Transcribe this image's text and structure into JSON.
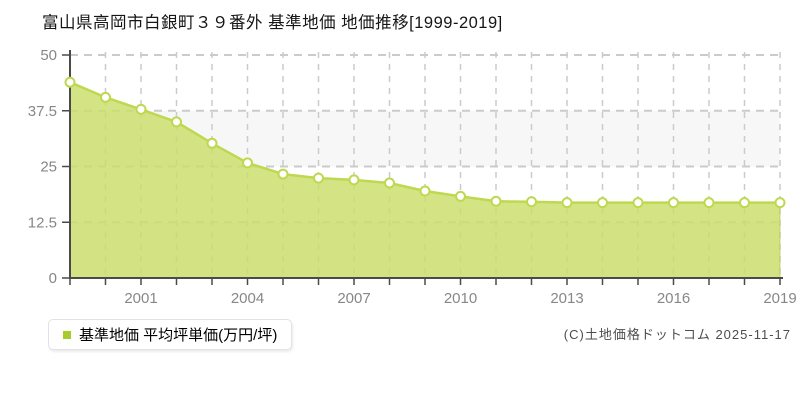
{
  "page": {
    "title": "富山県高岡市白銀町３９番外 基準地価 地価推移[1999-2019]",
    "copyright": "(C)土地価格ドットコム 2025-11-17"
  },
  "legend": {
    "label": "基準地価 平均坪単価(万円/坪)"
  },
  "colors": {
    "line": "#bed850",
    "area_fill": "rgba(202,222,106,0.82)",
    "area_edge": "rgba(167,200,60,0.65)",
    "marker_fill": "#ffffff",
    "legend_swatch": "#a8cc29",
    "band": "#f7f7f7",
    "grid": "#cbcbcb",
    "axis": "#4a4a4a",
    "tick_text": "#878787"
  },
  "chart_data": {
    "type": "area",
    "title": "富山県高岡市白銀町３９番外 基準地価 地価推移[1999-2019]",
    "x": [
      1999,
      2000,
      2001,
      2002,
      2003,
      2004,
      2005,
      2006,
      2007,
      2008,
      2009,
      2010,
      2011,
      2012,
      2013,
      2014,
      2015,
      2016,
      2017,
      2018,
      2019
    ],
    "series": [
      {
        "name": "基準地価 平均坪単価(万円/坪)",
        "values": [
          43.9,
          40.5,
          37.8,
          35.0,
          30.2,
          25.8,
          23.3,
          22.4,
          22.0,
          21.3,
          19.5,
          18.3,
          17.2,
          17.1,
          16.9,
          16.9,
          16.9,
          16.9,
          16.9,
          16.9,
          16.9
        ]
      }
    ],
    "ylabel": "平均坪単価(万円/坪)",
    "ylim": [
      0,
      50
    ],
    "yticks": [
      0,
      12.5,
      25,
      37.5,
      50
    ],
    "ytick_labels": [
      "0",
      "12.5",
      "25",
      "37.5",
      "50"
    ],
    "xtick_years": [
      2001,
      2004,
      2007,
      2010,
      2013,
      2016,
      2019
    ],
    "xtick_labels": [
      "2001",
      "2004",
      "2007",
      "2010",
      "2013",
      "2016",
      "2019"
    ],
    "grid": true,
    "legend_position": "bottom-left",
    "marker": "circle"
  }
}
